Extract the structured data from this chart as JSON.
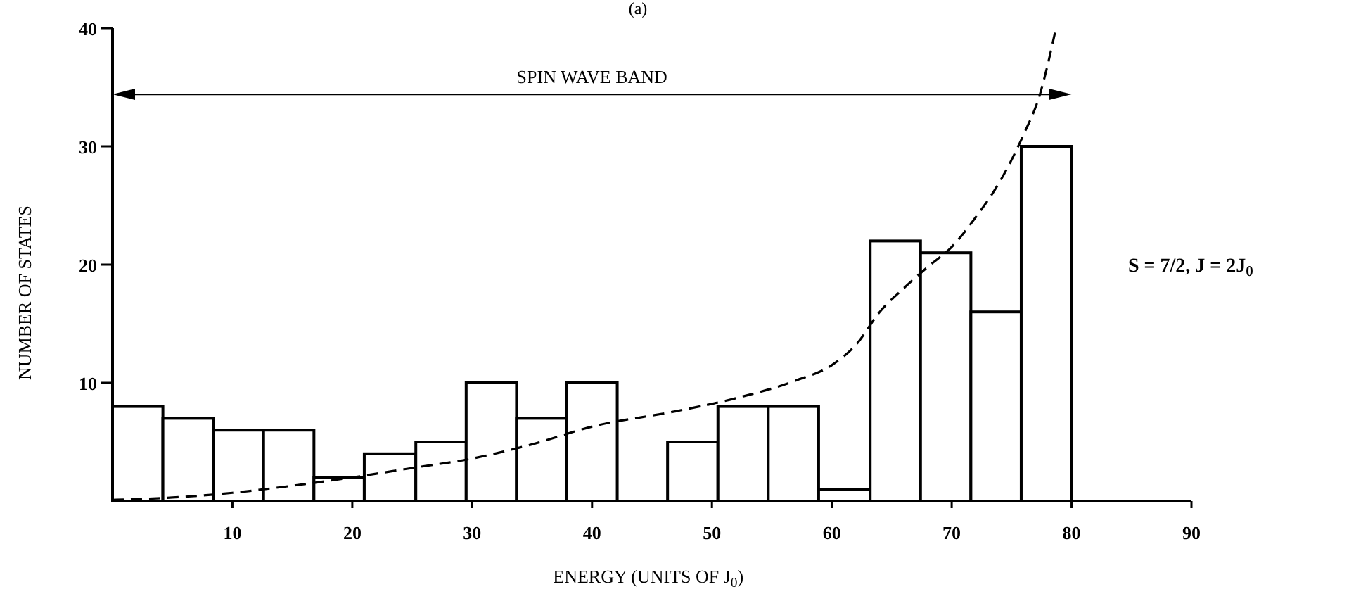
{
  "chart_data": {
    "type": "histogram",
    "title": "(a)",
    "xlabel": "ENERGY (UNITS OF J$_{0}$)",
    "ylabel": "NUMBER OF STATES",
    "bins": [
      0,
      4.2,
      8.4,
      12.6,
      16.8,
      21,
      25.3,
      29.5,
      33.7,
      37.9,
      42.1,
      46.3,
      50.5,
      54.7,
      58.9,
      63.2,
      67.4,
      71.6,
      75.8,
      80
    ],
    "values": [
      8,
      7,
      6,
      6,
      2,
      4,
      5,
      10,
      7,
      10,
      0,
      5,
      8,
      8,
      1,
      22,
      21,
      16,
      30
    ],
    "color": "#000000",
    "series": [
      {
        "type": "line",
        "color": "#000000",
        "line_style": "dashed",
        "x": [
          0,
          5,
          10,
          15,
          20,
          25,
          30,
          35,
          40,
          47,
          52,
          57,
          60,
          62,
          64,
          66,
          68,
          70,
          72,
          74,
          76,
          77.3,
          78.7
        ],
        "values": [
          0.1,
          0.3,
          0.7,
          1.3,
          2,
          2.8,
          3.6,
          4.8,
          6.3,
          7.6,
          8.7,
          10.2,
          11.5,
          13.2,
          16,
          18,
          19.8,
          21.5,
          24,
          27,
          31,
          34.2,
          40
        ]
      }
    ],
    "annotations": [
      "SPIN WAVE BAND",
      "S = 7/2,   J = 2J$_{0}$"
    ],
    "xlim": [
      0,
      90
    ],
    "ylim": [
      0,
      40
    ],
    "xticks": [
      10,
      20,
      30,
      40,
      50,
      60,
      70,
      80,
      90
    ],
    "yticks": [
      10,
      20,
      30,
      40
    ],
    "grid": false
  }
}
